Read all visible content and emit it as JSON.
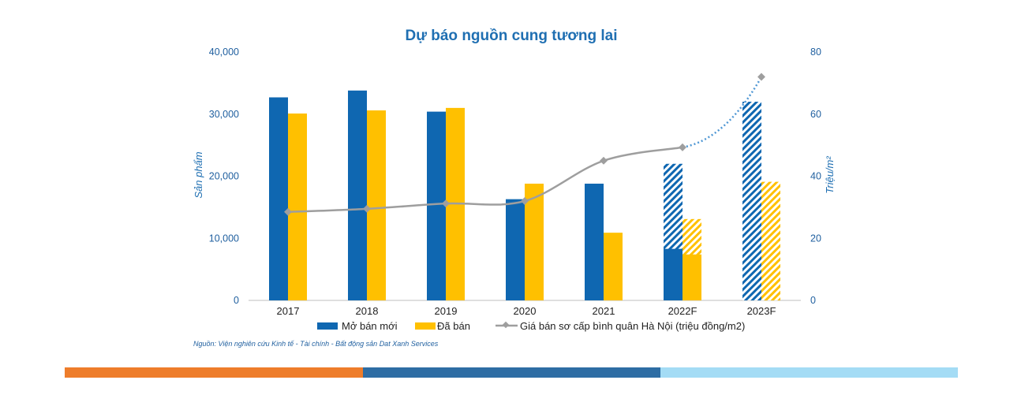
{
  "chart_data": {
    "type": "bar",
    "title": "Dự báo nguồn cung tương lai",
    "ylabel": "Sản phẩm",
    "y2label": "Triệu/m²",
    "ylim": [
      0,
      40000
    ],
    "y2lim": [
      0,
      80
    ],
    "yticks": [
      "0",
      "10,000",
      "20,000",
      "30,000",
      "40,000"
    ],
    "y2ticks": [
      "0",
      "20",
      "40",
      "60",
      "80"
    ],
    "categories": [
      "2017",
      "2018",
      "2019",
      "2020",
      "2021",
      "2022F",
      "2023F"
    ],
    "series": [
      {
        "name": "Mở bán mới",
        "kind": "bar",
        "color": "#0f67b1",
        "values": [
          32700,
          33800,
          30400,
          16300,
          18800,
          8300,
          0
        ],
        "forecast_total": [
          null,
          null,
          null,
          null,
          null,
          22000,
          32000
        ]
      },
      {
        "name": "Đã bán",
        "kind": "bar",
        "color": "#ffc000",
        "values": [
          30100,
          30600,
          31000,
          18800,
          10900,
          7400,
          0
        ],
        "forecast_total": [
          null,
          null,
          null,
          null,
          null,
          13100,
          19100
        ]
      },
      {
        "name": "Giá bán sơ cấp bình quân Hà Nội (triệu đồng/m2)",
        "kind": "line",
        "axis": "right",
        "color": "#9e9e9e",
        "values": [
          28.5,
          29.5,
          31.2,
          32.0,
          45.0,
          49.3,
          72.0
        ],
        "forecast_from_index": 5
      }
    ],
    "grid": false,
    "legend": "bottom"
  },
  "source": "Nguồn: Viện nghiên cứu Kinh tế - Tài chính - Bất động sản Dat Xanh Services",
  "colors": {
    "footer": [
      "#ee7d2b",
      "#2e6da4",
      "#a4dcf5"
    ],
    "axis_text": "#1f5f9f"
  }
}
